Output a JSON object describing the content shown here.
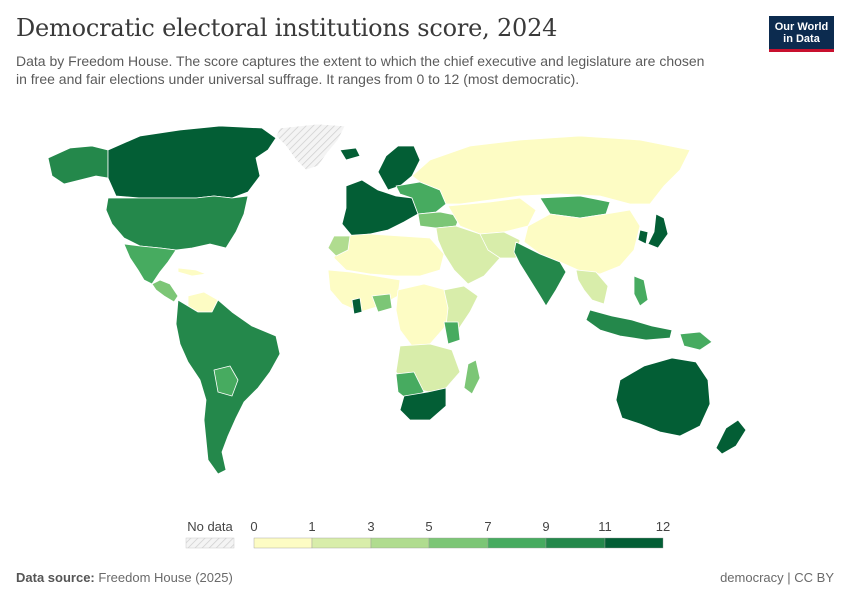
{
  "header": {
    "title": "Democratic electoral institutions score, 2024",
    "subtitle": "Data by Freedom House. The score captures the extent to which the chief executive and legislature are chosen in free and fair elections under universal suffrage. It ranges from 0 to 12 (most democratic).",
    "logo_line1": "Our World",
    "logo_line2": "in Data"
  },
  "legend": {
    "no_data_label": "No data",
    "ticks": [
      "0",
      "1",
      "3",
      "5",
      "7",
      "9",
      "11",
      "12"
    ],
    "colors": [
      "#fdfcc4",
      "#d8edaa",
      "#b0dc8f",
      "#7cc676",
      "#47ab60",
      "#24884b",
      "#035e35"
    ],
    "no_data_color": "#e8e8e8"
  },
  "footer": {
    "source_label": "Data source:",
    "source_value": "Freedom House (2025)",
    "right_text": "democracy | CC BY"
  },
  "colors": {
    "ocean": "#ffffff",
    "border": "#ffffff"
  }
}
